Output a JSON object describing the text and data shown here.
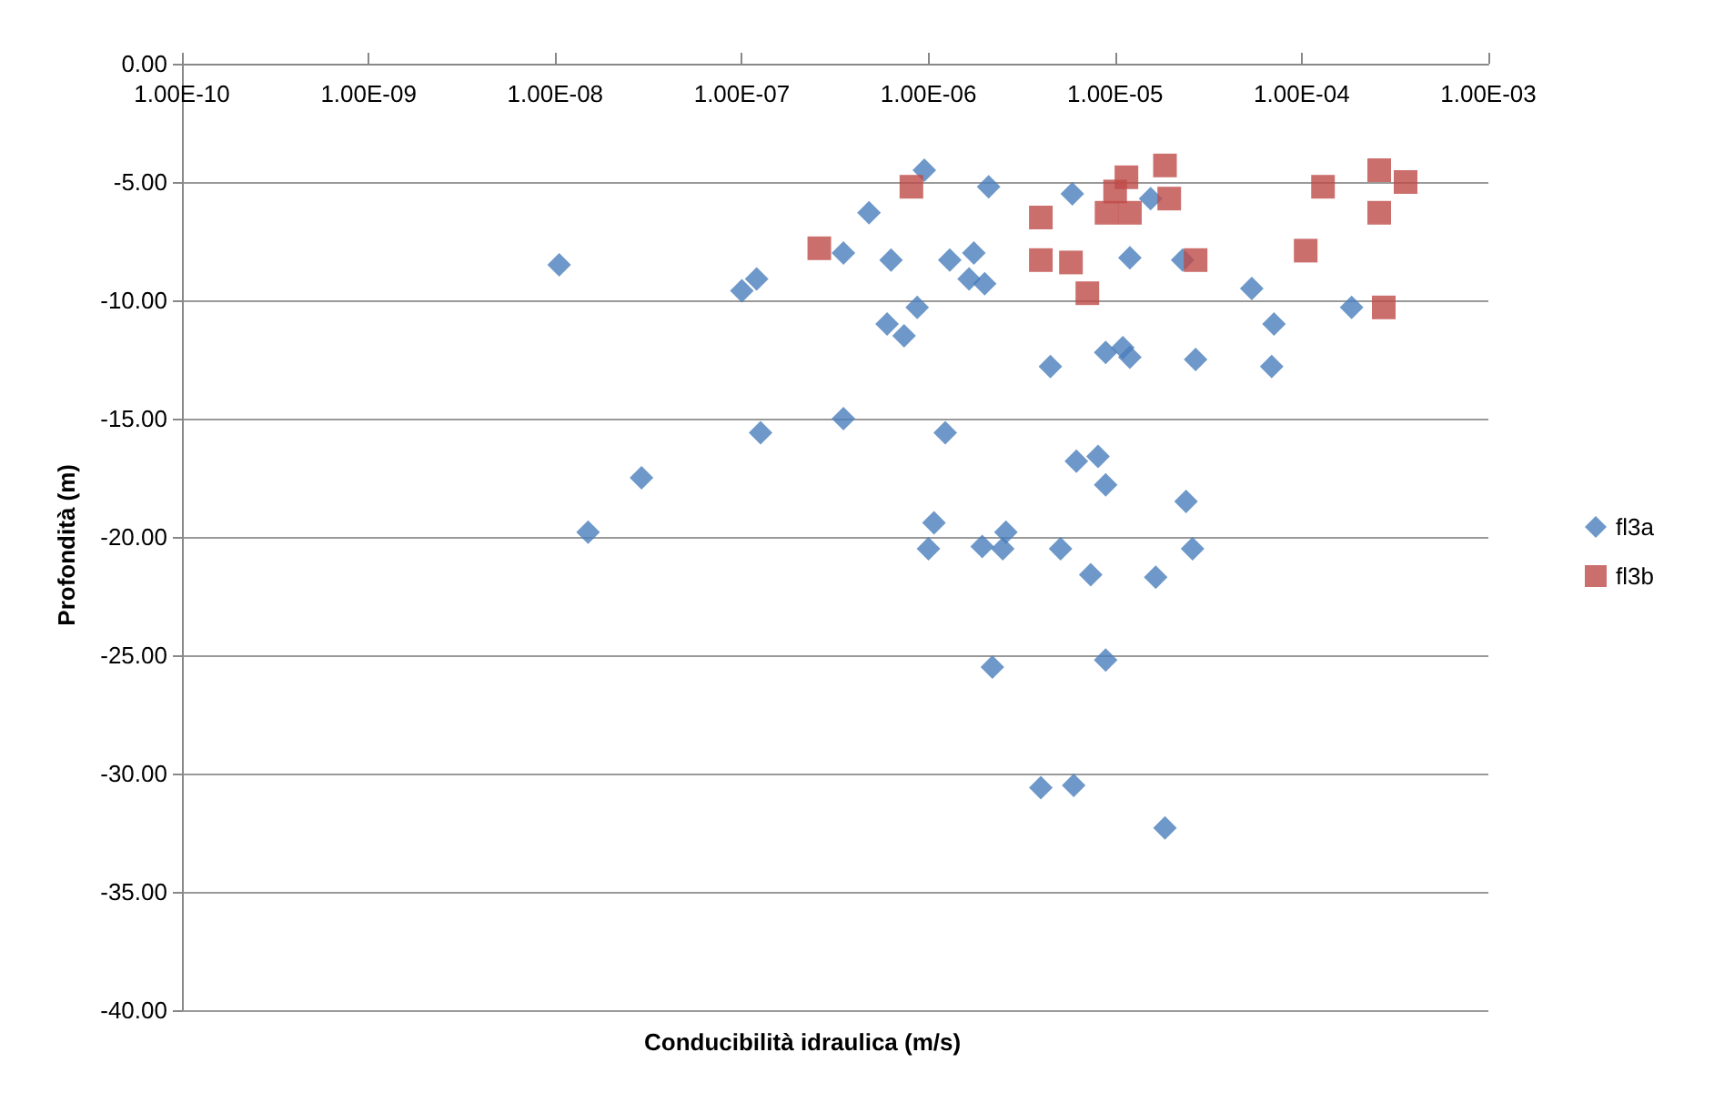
{
  "chart_data": {
    "type": "scatter",
    "xlabel": "Conducibilità idraulica (m/s)",
    "ylabel": "Profondità (m)",
    "log": "x",
    "xlim": [
      1e-10,
      0.001
    ],
    "xticks": [
      {
        "value": 1e-10,
        "label": "1.00E-10"
      },
      {
        "value": 1e-09,
        "label": "1.00E-09"
      },
      {
        "value": 1e-08,
        "label": "1.00E-08"
      },
      {
        "value": 1e-07,
        "label": "1.00E-07"
      },
      {
        "value": 1e-06,
        "label": "1.00E-06"
      },
      {
        "value": 1e-05,
        "label": "1.00E-05"
      },
      {
        "value": 0.0001,
        "label": "1.00E-04"
      },
      {
        "value": 0.001,
        "label": "1.00E-03"
      }
    ],
    "ylim": [
      -40,
      0
    ],
    "yticks": [
      {
        "value": 0,
        "label": "0.00"
      },
      {
        "value": -5,
        "label": "-5.00"
      },
      {
        "value": -10,
        "label": "-10.00"
      },
      {
        "value": -15,
        "label": "-15.00"
      },
      {
        "value": -20,
        "label": "-20.00"
      },
      {
        "value": -25,
        "label": "-25.00"
      },
      {
        "value": -30,
        "label": "-30.00"
      },
      {
        "value": -35,
        "label": "-35.00"
      },
      {
        "value": -40,
        "label": "-40.00"
      }
    ],
    "grid": "y",
    "legend": "right",
    "series": [
      {
        "name": "fl3a",
        "color": "#4a7ebb",
        "marker": "diamond",
        "x": [
          1.05e-08,
          1.5e-08,
          2.9e-08,
          1e-07,
          1.2e-07,
          1.26e-07,
          3.5e-07,
          3.5e-07,
          4.8e-07,
          6.3e-07,
          9.5e-07,
          6e-07,
          7.4e-07,
          8.7e-07,
          2.1e-06,
          1.3e-06,
          1.75e-06,
          1.65e-06,
          2e-06,
          1.23e-06,
          5.9e-06,
          4.5e-06,
          1e-05,
          1.2e-05,
          1.55e-05,
          8.9e-06,
          1.1e-05,
          1.2e-05,
          2.7e-05,
          2.3e-05,
          5.4e-05,
          7.1e-05,
          6.9e-05,
          0.000185,
          6.2e-06,
          8.1e-06,
          8.9e-06,
          2.4e-05,
          1.07e-06,
          1e-06,
          1.94e-06,
          2.6e-06,
          2.5e-06,
          5.1e-06,
          7.4e-06,
          1.65e-05,
          2.6e-05,
          2.2e-06,
          8.9e-06,
          4e-06,
          6e-06,
          1.85e-05
        ],
        "values": [
          -8.5,
          -19.8,
          -17.5,
          -9.6,
          -9.1,
          -15.6,
          -8.0,
          -15.0,
          -6.3,
          -8.3,
          -4.5,
          -11.0,
          -11.5,
          -10.3,
          -5.2,
          -8.3,
          -8.0,
          -9.1,
          -9.3,
          -15.6,
          -5.5,
          -12.8,
          null,
          -8.2,
          -5.7,
          -12.2,
          -12.0,
          -12.4,
          -12.5,
          -8.3,
          -9.5,
          -11.0,
          -12.8,
          -10.3,
          -16.8,
          -16.6,
          -17.8,
          -18.5,
          -19.4,
          -20.5,
          -20.4,
          -19.8,
          -20.5,
          -20.5,
          -21.6,
          -21.7,
          -20.5,
          -25.5,
          -25.2,
          -30.6,
          -30.5,
          -32.3
        ]
      },
      {
        "name": "fl3b",
        "color": "#be4b48",
        "marker": "square",
        "x": [
          2.6e-07,
          8.1e-07,
          4e-06,
          4e-06,
          5.8e-06,
          7.1e-06,
          9e-06,
          1e-05,
          1.15e-05,
          1.2e-05,
          1.85e-05,
          1.95e-05,
          2.7e-05,
          0.000105,
          0.00013,
          0.00026,
          0.00026,
          0.00036,
          0.000275
        ],
        "values": [
          -7.8,
          -5.2,
          -6.5,
          -8.3,
          -8.4,
          -9.7,
          -6.3,
          -5.4,
          -4.8,
          -6.3,
          -4.3,
          -5.7,
          -8.3,
          -7.9,
          -5.2,
          -4.5,
          -6.3,
          -5.0,
          -10.3
        ]
      }
    ]
  }
}
